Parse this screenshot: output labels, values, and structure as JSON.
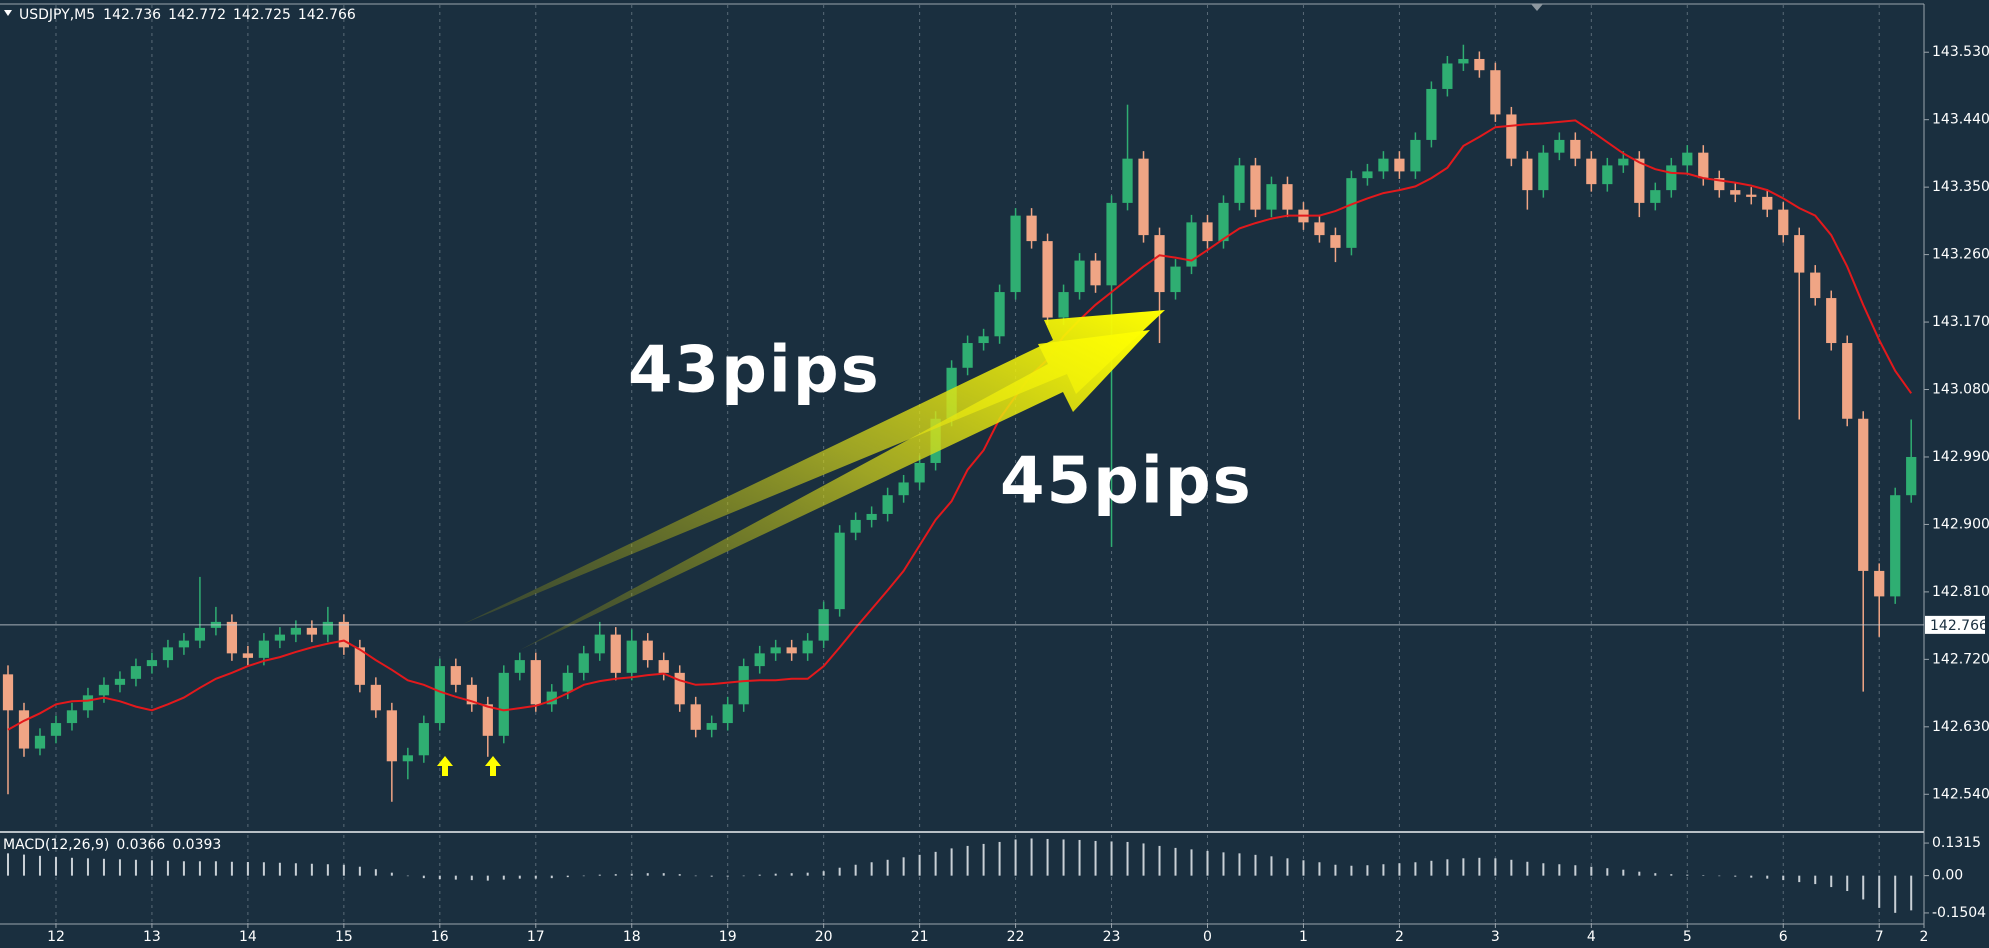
{
  "chart_data": [
    {
      "type": "candlestick",
      "title": "USDJPY,M5",
      "quote": [
        142.736,
        142.772,
        142.725,
        142.766
      ],
      "up_color": "#2fae72",
      "down_color": "#f0a585",
      "open": [
        142.7,
        142.652,
        142.601,
        142.618,
        142.635,
        142.652,
        142.672,
        142.686,
        142.694,
        142.711,
        142.719,
        142.736,
        142.745,
        142.762,
        142.77,
        142.728,
        142.722,
        142.745,
        142.753,
        142.762,
        142.753,
        142.77,
        142.736,
        142.686,
        142.652,
        142.584,
        142.592,
        142.635,
        142.711,
        142.686,
        142.66,
        142.618,
        142.702,
        142.719,
        142.66,
        142.677,
        142.702,
        142.728,
        142.753,
        142.702,
        142.745,
        142.719,
        142.702,
        142.66,
        142.626,
        142.635,
        142.66,
        142.711,
        142.728,
        142.736,
        142.728,
        142.745,
        142.787,
        142.889,
        142.906,
        142.914,
        142.939,
        142.956,
        142.982,
        143.041,
        143.109,
        143.142,
        143.151,
        143.21,
        143.312,
        143.278,
        143.176,
        143.21,
        143.252,
        143.219,
        143.329,
        143.388,
        143.286,
        143.21,
        143.244,
        143.303,
        143.278,
        143.329,
        143.379,
        143.32,
        143.354,
        143.32,
        143.303,
        143.286,
        143.269,
        143.362,
        143.371,
        143.388,
        143.371,
        143.413,
        143.481,
        143.515,
        143.521,
        143.506,
        143.447,
        143.388,
        143.346,
        143.396,
        143.413,
        143.388,
        143.354,
        143.379,
        143.388,
        143.329,
        143.346,
        143.379,
        143.396,
        143.362,
        143.346,
        143.34,
        143.337,
        143.32,
        143.286,
        143.236,
        143.202,
        143.142,
        143.041,
        142.838,
        142.804,
        142.939
      ],
      "high": [
        142.712,
        142.662,
        142.628,
        142.645,
        142.662,
        142.682,
        142.696,
        142.704,
        142.721,
        142.729,
        142.746,
        142.755,
        142.83,
        142.79,
        142.78,
        142.738,
        142.755,
        142.763,
        142.772,
        142.772,
        142.79,
        142.78,
        142.746,
        142.696,
        142.662,
        142.602,
        142.645,
        142.721,
        142.721,
        142.696,
        142.67,
        142.712,
        142.729,
        142.729,
        142.687,
        142.712,
        142.738,
        142.77,
        142.763,
        142.76,
        142.755,
        142.729,
        142.712,
        142.67,
        142.645,
        142.67,
        142.721,
        142.738,
        142.746,
        142.746,
        142.755,
        142.797,
        142.899,
        142.916,
        142.924,
        142.949,
        142.966,
        142.992,
        143.051,
        143.119,
        143.152,
        143.161,
        143.22,
        143.322,
        143.322,
        143.288,
        143.22,
        143.262,
        143.262,
        143.339,
        143.46,
        143.398,
        143.296,
        143.254,
        143.313,
        143.313,
        143.339,
        143.389,
        143.389,
        143.364,
        143.364,
        143.33,
        143.313,
        143.296,
        143.372,
        143.381,
        143.398,
        143.398,
        143.423,
        143.491,
        143.525,
        143.54,
        143.531,
        143.516,
        143.457,
        143.398,
        143.406,
        143.423,
        143.423,
        143.398,
        143.389,
        143.398,
        143.398,
        143.356,
        143.389,
        143.406,
        143.406,
        143.372,
        143.356,
        143.35,
        143.347,
        143.33,
        143.296,
        143.246,
        143.212,
        143.152,
        143.051,
        142.848,
        142.949,
        143.04
      ],
      "low": [
        142.54,
        142.59,
        142.592,
        142.608,
        142.625,
        142.642,
        142.662,
        142.676,
        142.684,
        142.701,
        142.709,
        142.726,
        142.735,
        142.752,
        142.718,
        142.712,
        142.712,
        142.735,
        142.743,
        142.743,
        142.743,
        142.726,
        142.676,
        142.642,
        142.53,
        142.56,
        142.582,
        142.625,
        142.676,
        142.65,
        142.59,
        142.608,
        142.692,
        142.65,
        142.65,
        142.667,
        142.692,
        142.718,
        142.692,
        142.692,
        142.709,
        142.692,
        142.65,
        142.616,
        142.616,
        142.625,
        142.65,
        142.701,
        142.718,
        142.718,
        142.718,
        142.735,
        142.777,
        142.879,
        142.896,
        142.904,
        142.929,
        142.946,
        142.972,
        143.031,
        143.099,
        143.132,
        143.141,
        143.2,
        143.268,
        143.166,
        143.166,
        143.2,
        143.209,
        142.87,
        143.319,
        143.276,
        143.142,
        143.2,
        143.234,
        143.268,
        143.268,
        143.319,
        143.31,
        143.31,
        143.31,
        143.293,
        143.276,
        143.25,
        143.259,
        143.352,
        143.361,
        143.361,
        143.361,
        143.403,
        143.471,
        143.505,
        143.496,
        143.437,
        143.378,
        143.32,
        143.336,
        143.386,
        143.378,
        143.344,
        143.344,
        143.369,
        143.31,
        143.319,
        143.336,
        143.369,
        143.352,
        143.336,
        143.33,
        143.327,
        143.31,
        143.276,
        143.04,
        143.192,
        143.132,
        143.031,
        142.677,
        142.75,
        142.794,
        142.929
      ],
      "close": [
        142.652,
        142.601,
        142.618,
        142.635,
        142.652,
        142.672,
        142.686,
        142.694,
        142.711,
        142.719,
        142.736,
        142.745,
        142.762,
        142.77,
        142.728,
        142.722,
        142.745,
        142.753,
        142.762,
        142.753,
        142.77,
        142.736,
        142.686,
        142.652,
        142.584,
        142.592,
        142.635,
        142.711,
        142.686,
        142.66,
        142.618,
        142.702,
        142.719,
        142.66,
        142.677,
        142.702,
        142.728,
        142.753,
        142.702,
        142.745,
        142.719,
        142.702,
        142.66,
        142.626,
        142.635,
        142.66,
        142.711,
        142.728,
        142.736,
        142.728,
        142.745,
        142.787,
        142.889,
        142.906,
        142.914,
        142.939,
        142.956,
        142.982,
        143.041,
        143.109,
        143.142,
        143.151,
        143.21,
        143.312,
        143.278,
        143.176,
        143.21,
        143.252,
        143.219,
        143.329,
        143.388,
        143.286,
        143.21,
        143.244,
        143.303,
        143.278,
        143.329,
        143.379,
        143.32,
        143.354,
        143.32,
        143.303,
        143.286,
        143.269,
        143.362,
        143.371,
        143.388,
        143.371,
        143.413,
        143.481,
        143.515,
        143.521,
        143.506,
        143.447,
        143.388,
        143.346,
        143.396,
        143.413,
        143.388,
        143.354,
        143.379,
        143.388,
        143.329,
        143.346,
        143.379,
        143.396,
        143.362,
        143.346,
        143.34,
        143.337,
        143.32,
        143.286,
        143.236,
        143.202,
        143.142,
        143.041,
        142.838,
        142.804,
        142.939,
        142.99
      ],
      "series": [
        {
          "color": "#e3191c",
          "values": [
            142.626,
            142.638,
            142.648,
            142.66,
            142.664,
            142.665,
            142.669,
            142.664,
            142.657,
            142.652,
            142.66,
            142.669,
            142.682,
            142.694,
            142.702,
            142.711,
            142.718,
            142.723,
            142.73,
            142.736,
            142.741,
            142.745,
            142.733,
            142.719,
            142.706,
            142.692,
            142.686,
            142.677,
            142.67,
            142.664,
            142.657,
            142.652,
            142.655,
            142.658,
            142.665,
            142.675,
            142.686,
            142.691,
            142.694,
            142.696,
            142.699,
            142.701,
            142.692,
            142.686,
            142.687,
            142.689,
            142.691,
            142.692,
            142.692,
            142.694,
            142.694,
            142.711,
            142.736,
            142.762,
            142.787,
            142.812,
            142.838,
            142.872,
            142.906,
            142.931,
            142.973,
            142.999,
            143.041,
            143.071,
            143.1,
            143.12,
            143.151,
            143.173,
            143.193,
            143.21,
            143.227,
            143.244,
            143.259,
            143.256,
            143.252,
            143.266,
            143.281,
            143.295,
            143.302,
            143.308,
            143.312,
            143.312,
            143.312,
            143.318,
            143.327,
            143.335,
            143.342,
            143.346,
            143.351,
            143.362,
            143.376,
            143.405,
            143.417,
            143.43,
            143.432,
            143.434,
            143.435,
            143.437,
            143.439,
            143.425,
            143.41,
            143.395,
            143.383,
            143.374,
            143.369,
            143.368,
            143.362,
            143.359,
            143.356,
            143.352,
            143.346,
            143.335,
            143.322,
            143.312,
            143.286,
            143.244,
            143.193,
            143.146,
            143.105,
            143.075
          ]
        }
      ],
      "annotations": [
        "43pips",
        "45pips"
      ],
      "last_price": 142.766,
      "xlim": [
        -0.5,
        119.8
      ],
      "xticks": [
        {
          "value": 3,
          "label": "12"
        },
        {
          "value": 9,
          "label": "13"
        },
        {
          "value": 15,
          "label": "14"
        },
        {
          "value": 21,
          "label": "15"
        },
        {
          "value": 27,
          "label": "16"
        },
        {
          "value": 33,
          "label": "17"
        },
        {
          "value": 39,
          "label": "18"
        },
        {
          "value": 45,
          "label": "19"
        },
        {
          "value": 51,
          "label": "20"
        },
        {
          "value": 57,
          "label": "21"
        },
        {
          "value": 63,
          "label": "22"
        },
        {
          "value": 69,
          "label": "23"
        },
        {
          "value": 75,
          "label": "0"
        },
        {
          "value": 81,
          "label": "1"
        },
        {
          "value": 87,
          "label": "2"
        },
        {
          "value": 93,
          "label": "3"
        },
        {
          "value": 99,
          "label": "4"
        },
        {
          "value": 105,
          "label": "5"
        },
        {
          "value": 111,
          "label": "6"
        },
        {
          "value": 117,
          "label": "7"
        },
        {
          "value": 119.8,
          "label": "2"
        }
      ],
      "ylim": [
        142.491,
        143.593
      ],
      "yticks": [
        {
          "value": 143.53,
          "label": "143.530"
        },
        {
          "value": 143.44,
          "label": "143.440"
        },
        {
          "value": 143.35,
          "label": "143.350"
        },
        {
          "value": 143.26,
          "label": "143.260"
        },
        {
          "value": 143.17,
          "label": "143.170"
        },
        {
          "value": 143.08,
          "label": "143.080"
        },
        {
          "value": 142.99,
          "label": "142.990"
        },
        {
          "value": 142.9,
          "label": "142.900"
        },
        {
          "value": 142.81,
          "label": "142.810"
        },
        {
          "value": 142.72,
          "label": "142.720"
        },
        {
          "value": 142.63,
          "label": "142.630"
        },
        {
          "value": 142.54,
          "label": "142.540"
        }
      ],
      "grid": true
    },
    {
      "type": "bar",
      "title": "MACD(12,26,9)",
      "quote": [
        0.0366,
        0.0393
      ],
      "color": "#c9d0d6",
      "values": [
        0.09,
        0.085,
        0.08,
        0.075,
        0.072,
        0.07,
        0.068,
        0.066,
        0.064,
        0.062,
        0.06,
        0.058,
        0.058,
        0.058,
        0.056,
        0.055,
        0.054,
        0.052,
        0.05,
        0.048,
        0.046,
        0.044,
        0.036,
        0.026,
        0.012,
        0.0,
        -0.01,
        -0.014,
        -0.016,
        -0.018,
        -0.02,
        -0.016,
        -0.012,
        -0.012,
        -0.01,
        -0.006,
        -0.002,
        0.004,
        0.006,
        0.008,
        0.01,
        0.01,
        0.006,
        0.0,
        -0.004,
        -0.004,
        0.0,
        0.004,
        0.008,
        0.01,
        0.012,
        0.018,
        0.032,
        0.044,
        0.054,
        0.064,
        0.074,
        0.084,
        0.096,
        0.11,
        0.12,
        0.128,
        0.136,
        0.146,
        0.15,
        0.148,
        0.146,
        0.144,
        0.14,
        0.138,
        0.136,
        0.13,
        0.12,
        0.112,
        0.106,
        0.1,
        0.094,
        0.09,
        0.084,
        0.078,
        0.07,
        0.062,
        0.054,
        0.044,
        0.04,
        0.042,
        0.046,
        0.05,
        0.054,
        0.06,
        0.066,
        0.07,
        0.072,
        0.07,
        0.064,
        0.056,
        0.05,
        0.046,
        0.042,
        0.036,
        0.03,
        0.024,
        0.016,
        0.01,
        0.006,
        0.004,
        0.002,
        0.0,
        -0.004,
        -0.008,
        -0.012,
        -0.018,
        -0.026,
        -0.034,
        -0.046,
        -0.062,
        -0.096,
        -0.13,
        -0.15,
        -0.14
      ],
      "ylim": [
        -0.191,
        0.164
      ],
      "yticks": [
        0.1315,
        {
          "value": 0,
          "label": "0.00"
        },
        -0.1504
      ]
    }
  ]
}
